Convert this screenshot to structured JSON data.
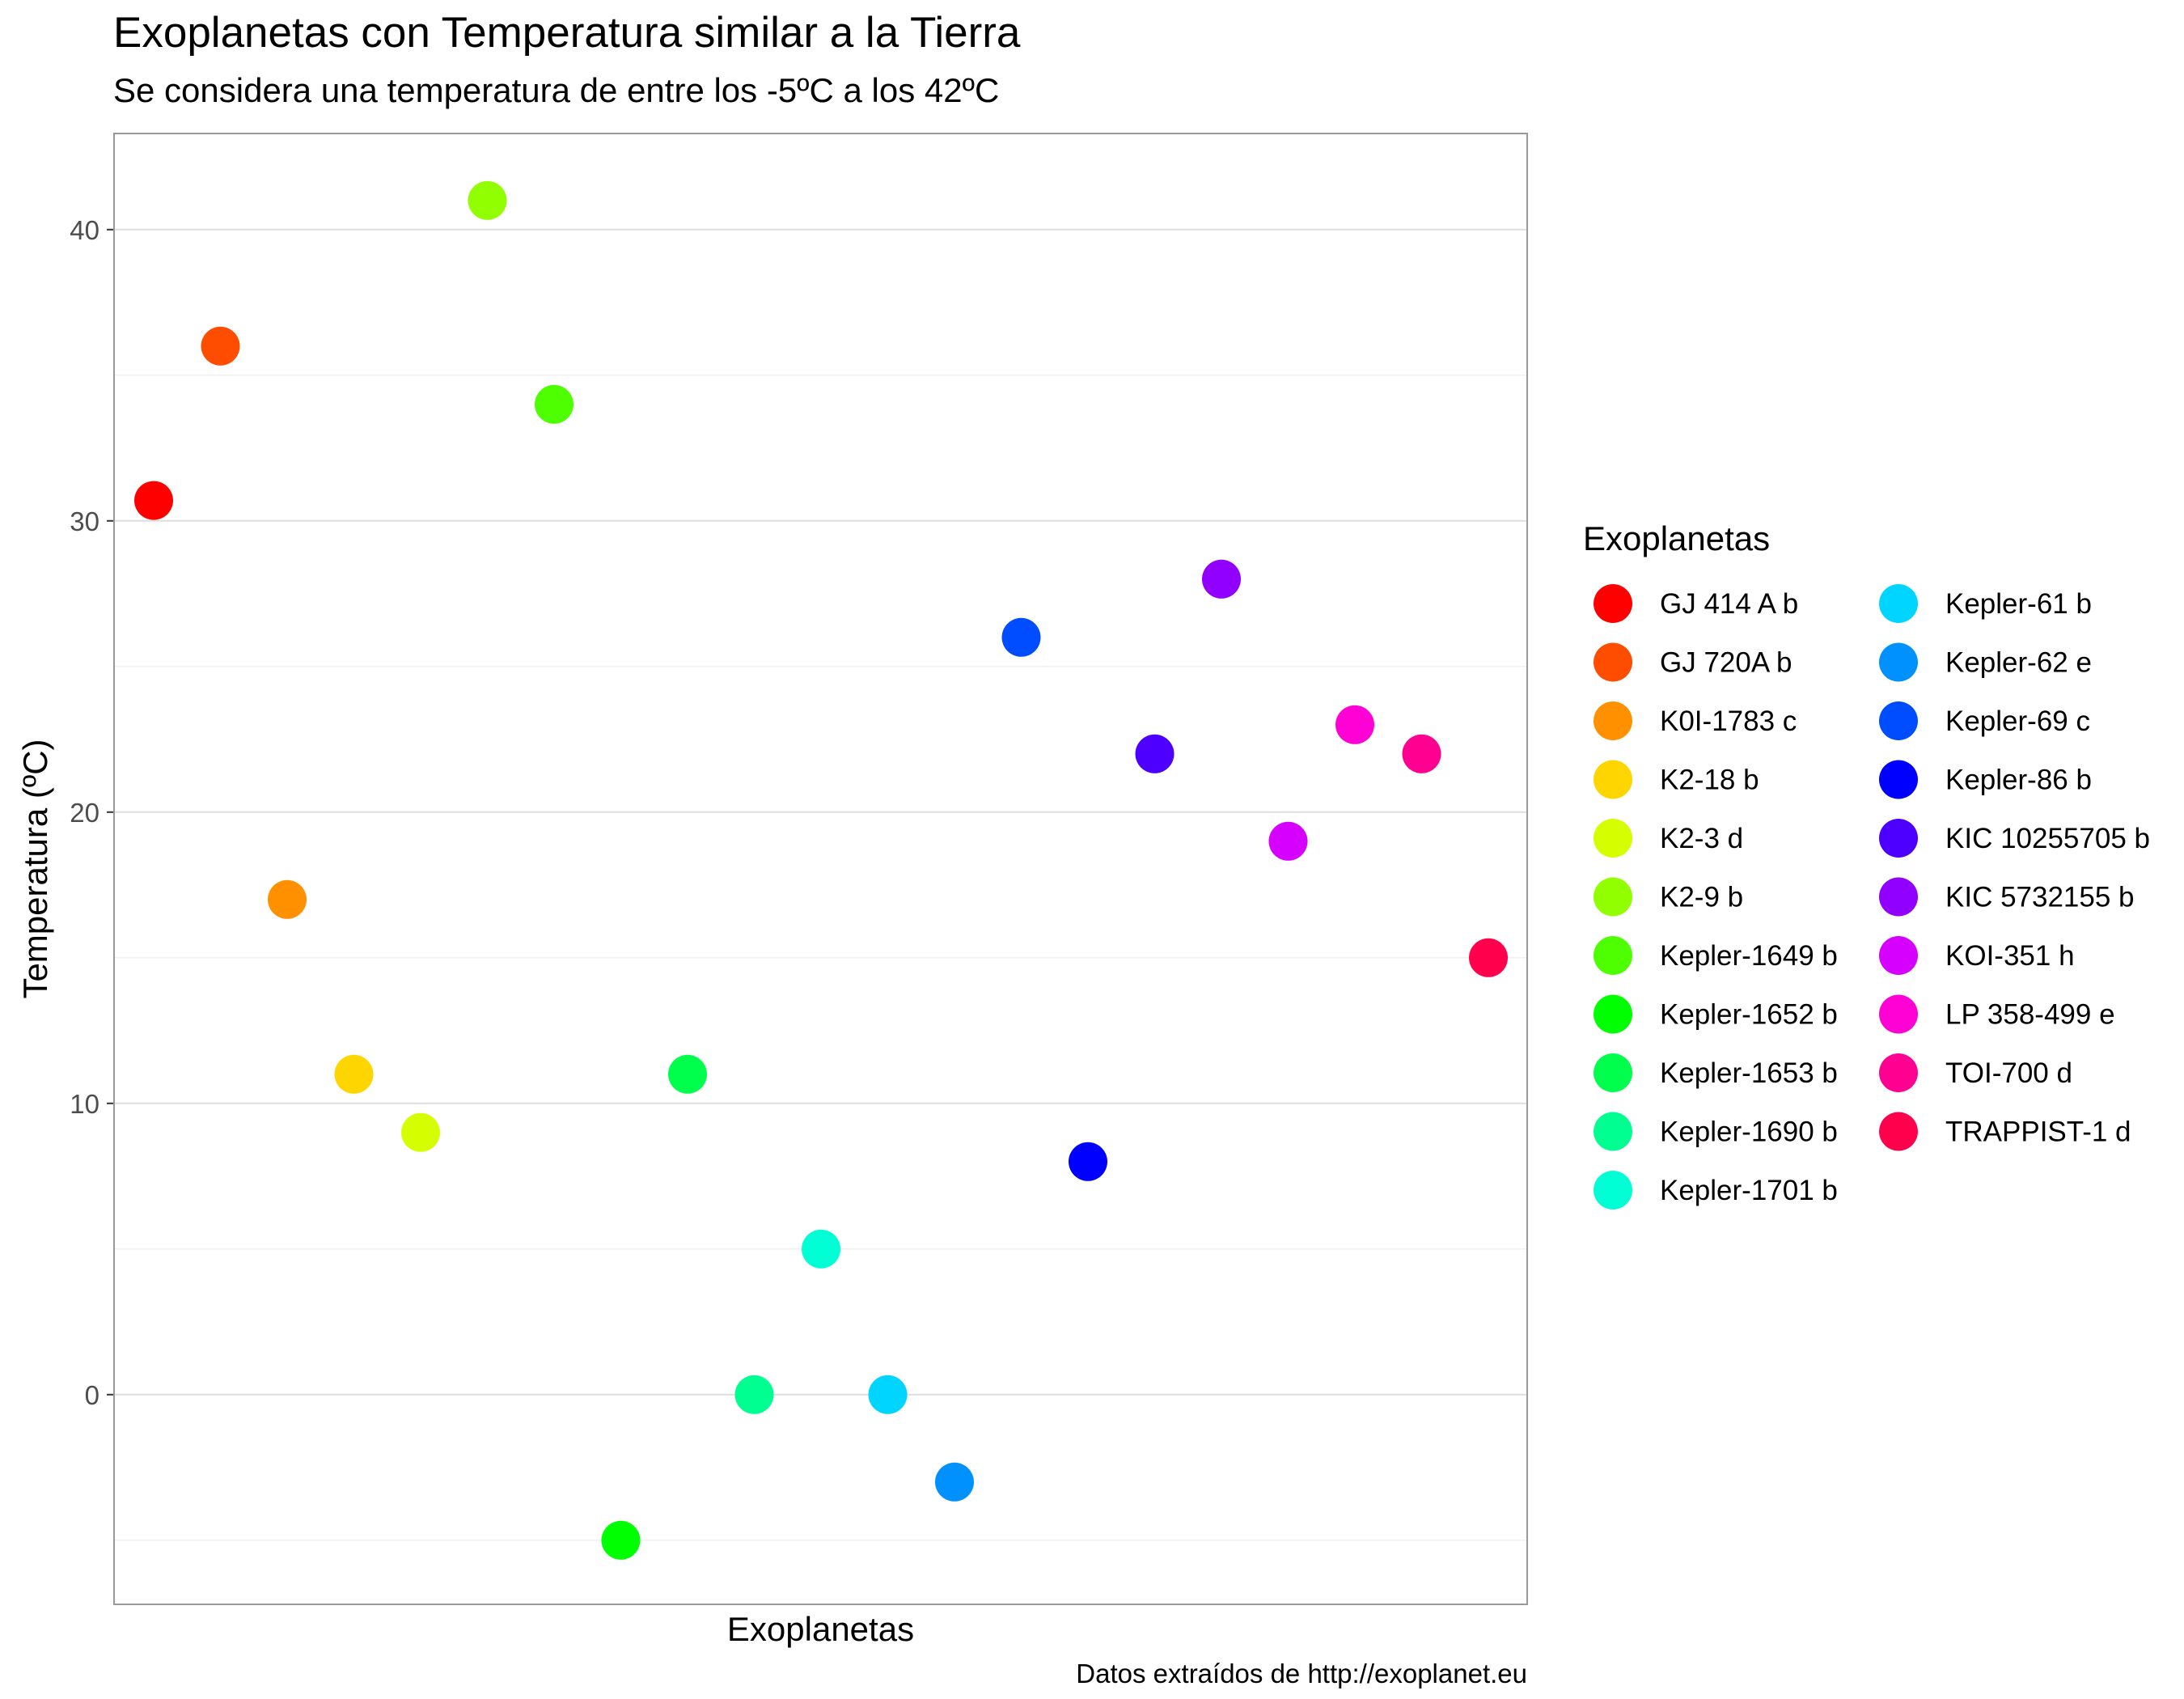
{
  "chart_data": {
    "type": "scatter",
    "title": "Exoplanetas con Temperatura similar a la Tierra",
    "subtitle": "Se considera una temperatura de entre los -5ºC a los 42ºC",
    "xlabel": "Exoplanetas",
    "ylabel": "Temperatura (ºC)",
    "caption": "Datos extraídos de http://exoplanet.eu",
    "legend_title": "Exoplanetas",
    "legend_position": "right",
    "grid": true,
    "ylim": [
      -7.2,
      43.3
    ],
    "y_ticks": [
      0,
      10,
      20,
      30,
      40
    ],
    "x_ticks": [],
    "series": [
      {
        "name": "GJ 414 A b",
        "color": "#FF0000",
        "y": 30.7
      },
      {
        "name": "GJ 720A b",
        "color": "#FF4D00",
        "y": 36
      },
      {
        "name": "K0I-1783 c",
        "color": "#FF9100",
        "y": 17
      },
      {
        "name": "K2-18 b",
        "color": "#FFD500",
        "y": 11
      },
      {
        "name": "K2-3 d",
        "color": "#D5FF00",
        "y": 9
      },
      {
        "name": "K2-9 b",
        "color": "#91FF00",
        "y": 41
      },
      {
        "name": "Kepler-1649 b",
        "color": "#4DFF00",
        "y": 34
      },
      {
        "name": "Kepler-1652 b",
        "color": "#00FF00",
        "y": -5
      },
      {
        "name": "Kepler-1653 b",
        "color": "#00FF4D",
        "y": 11
      },
      {
        "name": "Kepler-1690 b",
        "color": "#00FF91",
        "y": 0
      },
      {
        "name": "Kepler-1701 b",
        "color": "#00FFD5",
        "y": 5
      },
      {
        "name": "Kepler-61 b",
        "color": "#00D5FF",
        "y": 0
      },
      {
        "name": "Kepler-62 e",
        "color": "#0091FF",
        "y": -3
      },
      {
        "name": "Kepler-69 c",
        "color": "#004DFF",
        "y": 26
      },
      {
        "name": "Kepler-86 b",
        "color": "#0000FF",
        "y": 8
      },
      {
        "name": "KIC 10255705 b",
        "color": "#4D00FF",
        "y": 22
      },
      {
        "name": "KIC 5732155 b",
        "color": "#9100FF",
        "y": 28
      },
      {
        "name": "KOI-351 h",
        "color": "#D500FF",
        "y": 19
      },
      {
        "name": "LP 358-499 e",
        "color": "#FF00D5",
        "y": 23
      },
      {
        "name": "TOI-700 d",
        "color": "#FF0091",
        "y": 22
      },
      {
        "name": "TRAPPIST-1 d",
        "color": "#FF004D",
        "y": 15
      }
    ]
  }
}
